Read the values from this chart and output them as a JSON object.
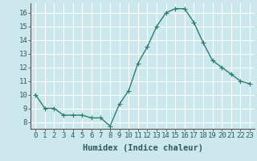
{
  "x": [
    0,
    1,
    2,
    3,
    4,
    5,
    6,
    7,
    8,
    9,
    10,
    11,
    12,
    13,
    14,
    15,
    16,
    17,
    18,
    19,
    20,
    21,
    22,
    23
  ],
  "y": [
    10.0,
    9.0,
    9.0,
    8.5,
    8.5,
    8.5,
    8.3,
    8.3,
    7.7,
    9.3,
    10.3,
    12.3,
    13.5,
    15.0,
    16.0,
    16.3,
    16.3,
    15.3,
    13.8,
    12.5,
    12.0,
    11.5,
    11.0,
    10.8
  ],
  "line_color": "#2d7d6e",
  "marker": "+",
  "marker_size": 4,
  "bg_color": "#cce8ec",
  "grid_color": "#ffffff",
  "xlabel": "Humidex (Indice chaleur)",
  "xlim": [
    -0.5,
    23.5
  ],
  "ylim": [
    7.5,
    16.7
  ],
  "yticks": [
    8,
    9,
    10,
    11,
    12,
    13,
    14,
    15,
    16
  ],
  "tick_fontsize": 6.5,
  "xlabel_fontsize": 7.5,
  "linewidth": 1.0,
  "markeredgewidth": 0.8
}
